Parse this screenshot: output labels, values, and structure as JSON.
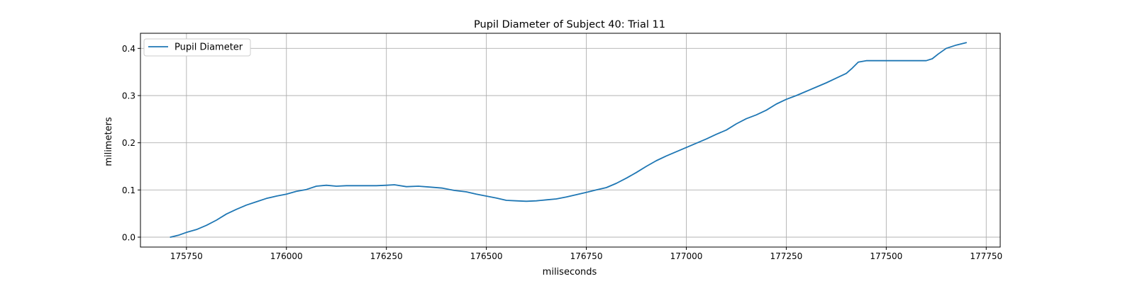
{
  "colors": {
    "series": "#1f77b4",
    "grid": "#b0b0b0",
    "axis": "#000000",
    "background": "#ffffff"
  },
  "chart_data": {
    "type": "line",
    "title": "Pupil Diameter of Subject 40: Trial 11",
    "xlabel": "miliseconds",
    "ylabel": "milimeters",
    "xlim": [
      175635,
      177785
    ],
    "ylim": [
      -0.021,
      0.432
    ],
    "xticks": [
      175750,
      176000,
      176250,
      176500,
      176750,
      177000,
      177250,
      177500,
      177750
    ],
    "yticks": [
      0.0,
      0.1,
      0.2,
      0.3,
      0.4
    ],
    "xtick_labels": [
      "175750",
      "176000",
      "176250",
      "176500",
      "176750",
      "177000",
      "177250",
      "177500",
      "177750"
    ],
    "ytick_labels": [
      "0.0",
      "0.1",
      "0.2",
      "0.3",
      "0.4"
    ],
    "grid": true,
    "legend_position": "upper left",
    "series": [
      {
        "name": "Pupil Diameter",
        "x": [
          175710,
          175730,
          175750,
          175775,
          175800,
          175825,
          175850,
          175875,
          175900,
          175925,
          175950,
          175975,
          176000,
          176025,
          176050,
          176075,
          176100,
          176125,
          176150,
          176175,
          176200,
          176225,
          176250,
          176270,
          176300,
          176330,
          176360,
          176390,
          176420,
          176450,
          176475,
          176500,
          176525,
          176550,
          176575,
          176600,
          176625,
          176650,
          176675,
          176700,
          176725,
          176750,
          176775,
          176800,
          176825,
          176850,
          176875,
          176900,
          176925,
          176950,
          176975,
          177000,
          177025,
          177050,
          177075,
          177100,
          177125,
          177150,
          177175,
          177200,
          177225,
          177250,
          177275,
          177300,
          177325,
          177350,
          177375,
          177400,
          177415,
          177430,
          177450,
          177500,
          177550,
          177600,
          177615,
          177630,
          177650,
          177675,
          177700
        ],
        "y": [
          0.0,
          0.004,
          0.01,
          0.016,
          0.025,
          0.036,
          0.049,
          0.059,
          0.068,
          0.075,
          0.082,
          0.087,
          0.091,
          0.097,
          0.101,
          0.108,
          0.11,
          0.108,
          0.109,
          0.109,
          0.109,
          0.109,
          0.11,
          0.111,
          0.107,
          0.108,
          0.106,
          0.104,
          0.099,
          0.096,
          0.091,
          0.087,
          0.083,
          0.078,
          0.077,
          0.076,
          0.077,
          0.079,
          0.081,
          0.085,
          0.09,
          0.095,
          0.1,
          0.105,
          0.114,
          0.125,
          0.137,
          0.15,
          0.162,
          0.172,
          0.181,
          0.19,
          0.199,
          0.208,
          0.218,
          0.227,
          0.24,
          0.251,
          0.259,
          0.269,
          0.282,
          0.292,
          0.3,
          0.309,
          0.318,
          0.327,
          0.337,
          0.347,
          0.358,
          0.371,
          0.374,
          0.374,
          0.374,
          0.374,
          0.378,
          0.388,
          0.4,
          0.407,
          0.412
        ]
      }
    ]
  }
}
